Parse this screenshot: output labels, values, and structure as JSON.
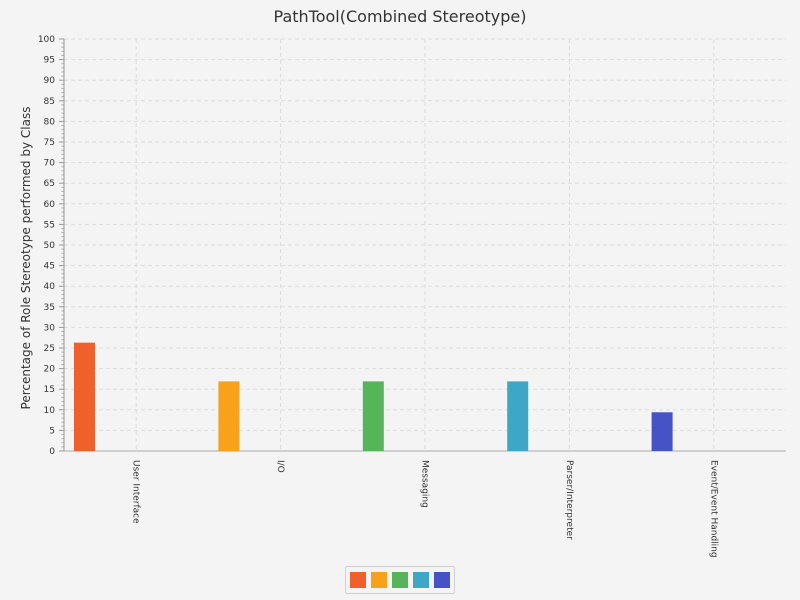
{
  "chart_data": {
    "type": "bar",
    "title": "PathTool(Combined Stereotype)",
    "ylabel": "Percentage of Role Stereotype performed by Class",
    "xlabel": "",
    "categories": [
      "User Interface",
      "I/O",
      "Messaging",
      "Parser/Interpreter",
      "Event/Event Handling"
    ],
    "values": [
      26.3,
      16.9,
      16.9,
      16.9,
      9.4
    ],
    "colors": [
      "#f0602d",
      "#f8a21c",
      "#56b55a",
      "#3ea7c8",
      "#4553c7"
    ],
    "ylim": [
      0,
      100
    ],
    "yticks": [
      "0",
      "5",
      "10",
      "15",
      "20",
      "25",
      "30",
      "35",
      "40",
      "45",
      "50",
      "55",
      "60",
      "65",
      "70",
      "75",
      "80",
      "85",
      "90",
      "95",
      "100"
    ],
    "grid": true,
    "legend_position": "bottom-center"
  }
}
